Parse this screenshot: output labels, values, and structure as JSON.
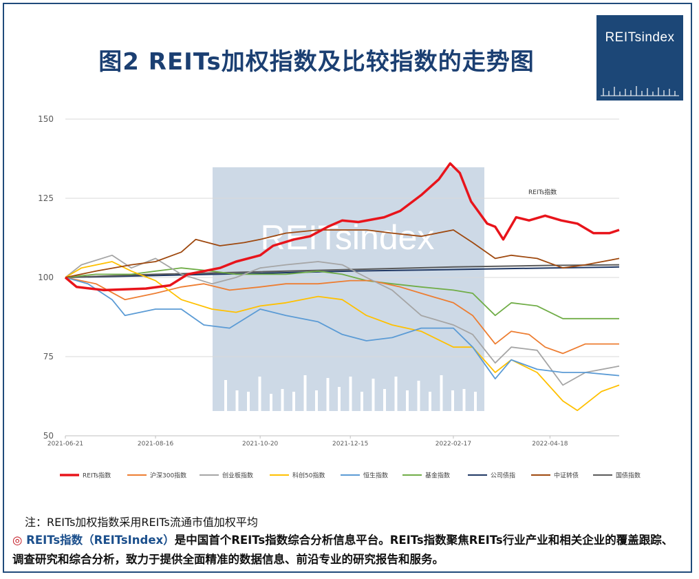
{
  "title": "图2  REITs加权指数及比较指数的走势图",
  "logo": {
    "text": "REITsindex",
    "bg_color": "#1c4777"
  },
  "watermark": "REITsindex",
  "note": "注：REITs加权指数采用REITs流通市值加权平均",
  "description": {
    "bullet": "◎",
    "brand": "REITs指数（REITsIndex）",
    "text": "是中国首个REITs指数综合分析信息平台。REITs指数聚焦REITs行业产业和相关企业的覆盖跟踪、调查研究和综合分析，致力于提供全面精准的数据信息、前沿专业的研究报告和服务。"
  },
  "chart_data": {
    "type": "line",
    "title": "",
    "xlabel": "",
    "ylabel": "",
    "ylim": [
      50,
      150
    ],
    "yticks": [
      50,
      75,
      100,
      125,
      150
    ],
    "x_range": [
      "2021-06-21",
      "2022-05-31"
    ],
    "x_tick_labels": [
      "2021-06-21",
      "2021-08-16",
      "2021-10-20",
      "2021-12-15",
      "2022-02-17",
      "2022-04-18"
    ],
    "grid": "horizontal",
    "legend_position": "bottom",
    "annotation": "REITs指数",
    "series": [
      {
        "name": "REITs指数",
        "color": "#e8141b",
        "points": [
          [
            "2021-06-21",
            100
          ],
          [
            "2021-06-28",
            97
          ],
          [
            "2021-07-15",
            96
          ],
          [
            "2021-08-10",
            96.5
          ],
          [
            "2021-08-25",
            97.5
          ],
          [
            "2021-09-05",
            101
          ],
          [
            "2021-09-15",
            102
          ],
          [
            "2021-09-25",
            103
          ],
          [
            "2021-10-05",
            105
          ],
          [
            "2021-10-20",
            107
          ],
          [
            "2021-10-28",
            110
          ],
          [
            "2021-11-10",
            112
          ],
          [
            "2021-11-20",
            113
          ],
          [
            "2021-12-01",
            116
          ],
          [
            "2021-12-10",
            118
          ],
          [
            "2021-12-20",
            117.5
          ],
          [
            "2022-01-05",
            119
          ],
          [
            "2022-01-15",
            121
          ],
          [
            "2022-01-28",
            126
          ],
          [
            "2022-02-08",
            131
          ],
          [
            "2022-02-15",
            136
          ],
          [
            "2022-02-21",
            133
          ],
          [
            "2022-02-28",
            124
          ],
          [
            "2022-03-10",
            117
          ],
          [
            "2022-03-15",
            116
          ],
          [
            "2022-03-20",
            112
          ],
          [
            "2022-03-28",
            119
          ],
          [
            "2022-04-05",
            118
          ],
          [
            "2022-04-15",
            119.5
          ],
          [
            "2022-04-25",
            118
          ],
          [
            "2022-05-05",
            117
          ],
          [
            "2022-05-15",
            114
          ],
          [
            "2022-05-25",
            114
          ],
          [
            "2022-05-31",
            115
          ]
        ]
      },
      {
        "name": "沪深300指数",
        "color": "#ed7d31",
        "points": [
          [
            "2021-06-21",
            100
          ],
          [
            "2021-07-10",
            98
          ],
          [
            "2021-07-28",
            93
          ],
          [
            "2021-08-16",
            95
          ],
          [
            "2021-09-01",
            97
          ],
          [
            "2021-09-15",
            98
          ],
          [
            "2021-10-01",
            96
          ],
          [
            "2021-10-20",
            97
          ],
          [
            "2021-11-05",
            98
          ],
          [
            "2021-11-25",
            98
          ],
          [
            "2021-12-15",
            99
          ],
          [
            "2021-12-28",
            99
          ],
          [
            "2022-01-15",
            97
          ],
          [
            "2022-01-28",
            95
          ],
          [
            "2022-02-17",
            92
          ],
          [
            "2022-03-01",
            88
          ],
          [
            "2022-03-15",
            79
          ],
          [
            "2022-03-25",
            83
          ],
          [
            "2022-04-05",
            82
          ],
          [
            "2022-04-15",
            78
          ],
          [
            "2022-04-26",
            76
          ],
          [
            "2022-05-10",
            79
          ],
          [
            "2022-05-31",
            79
          ]
        ]
      },
      {
        "name": "创业板指数",
        "color": "#a5a5a5",
        "points": [
          [
            "2021-06-21",
            100
          ],
          [
            "2021-07-01",
            104
          ],
          [
            "2021-07-20",
            107
          ],
          [
            "2021-08-01",
            103
          ],
          [
            "2021-08-16",
            106
          ],
          [
            "2021-09-01",
            101
          ],
          [
            "2021-09-20",
            98
          ],
          [
            "2021-10-05",
            100
          ],
          [
            "2021-10-20",
            103
          ],
          [
            "2021-11-05",
            104
          ],
          [
            "2021-11-25",
            105
          ],
          [
            "2021-12-10",
            104
          ],
          [
            "2021-12-25",
            100
          ],
          [
            "2022-01-10",
            96
          ],
          [
            "2022-01-28",
            88
          ],
          [
            "2022-02-17",
            85
          ],
          [
            "2022-03-01",
            82
          ],
          [
            "2022-03-15",
            73
          ],
          [
            "2022-03-25",
            78
          ],
          [
            "2022-04-10",
            77
          ],
          [
            "2022-04-26",
            66
          ],
          [
            "2022-05-10",
            70
          ],
          [
            "2022-05-31",
            72
          ]
        ]
      },
      {
        "name": "科创50指数",
        "color": "#ffc000",
        "points": [
          [
            "2021-06-21",
            100
          ],
          [
            "2021-07-01",
            103
          ],
          [
            "2021-07-20",
            105
          ],
          [
            "2021-08-01",
            102
          ],
          [
            "2021-08-16",
            99
          ],
          [
            "2021-09-01",
            93
          ],
          [
            "2021-09-20",
            90
          ],
          [
            "2021-10-05",
            89
          ],
          [
            "2021-10-20",
            91
          ],
          [
            "2021-11-05",
            92
          ],
          [
            "2021-11-25",
            94
          ],
          [
            "2021-12-10",
            93
          ],
          [
            "2021-12-25",
            88
          ],
          [
            "2022-01-10",
            85
          ],
          [
            "2022-01-28",
            83
          ],
          [
            "2022-02-17",
            78
          ],
          [
            "2022-03-01",
            78
          ],
          [
            "2022-03-15",
            70
          ],
          [
            "2022-03-25",
            74
          ],
          [
            "2022-04-10",
            70
          ],
          [
            "2022-04-26",
            61
          ],
          [
            "2022-05-05",
            58
          ],
          [
            "2022-05-20",
            64
          ],
          [
            "2022-05-31",
            66
          ]
        ]
      },
      {
        "name": "恒生指数",
        "color": "#5b9bd5",
        "points": [
          [
            "2021-06-21",
            100
          ],
          [
            "2021-07-05",
            98
          ],
          [
            "2021-07-20",
            93
          ],
          [
            "2021-07-28",
            88
          ],
          [
            "2021-08-16",
            90
          ],
          [
            "2021-09-01",
            90
          ],
          [
            "2021-09-15",
            85
          ],
          [
            "2021-10-01",
            84
          ],
          [
            "2021-10-20",
            90
          ],
          [
            "2021-11-05",
            88
          ],
          [
            "2021-11-25",
            86
          ],
          [
            "2021-12-10",
            82
          ],
          [
            "2021-12-25",
            80
          ],
          [
            "2022-01-10",
            81
          ],
          [
            "2022-01-28",
            84
          ],
          [
            "2022-02-17",
            84
          ],
          [
            "2022-03-01",
            78
          ],
          [
            "2022-03-15",
            68
          ],
          [
            "2022-03-25",
            74
          ],
          [
            "2022-04-10",
            71
          ],
          [
            "2022-04-26",
            70
          ],
          [
            "2022-05-10",
            70
          ],
          [
            "2022-05-31",
            69
          ]
        ]
      },
      {
        "name": "基金指数",
        "color": "#70ad47",
        "points": [
          [
            "2021-06-21",
            100
          ],
          [
            "2021-07-10",
            101
          ],
          [
            "2021-08-01",
            101
          ],
          [
            "2021-08-16",
            102
          ],
          [
            "2021-09-01",
            103
          ],
          [
            "2021-09-20",
            102
          ],
          [
            "2021-10-05",
            101
          ],
          [
            "2021-10-20",
            101
          ],
          [
            "2021-11-05",
            101
          ],
          [
            "2021-11-25",
            102
          ],
          [
            "2021-12-10",
            101
          ],
          [
            "2021-12-25",
            99
          ],
          [
            "2022-01-10",
            98
          ],
          [
            "2022-01-28",
            97
          ],
          [
            "2022-02-17",
            96
          ],
          [
            "2022-03-01",
            95
          ],
          [
            "2022-03-15",
            88
          ],
          [
            "2022-03-25",
            92
          ],
          [
            "2022-04-10",
            91
          ],
          [
            "2022-04-26",
            87
          ],
          [
            "2022-05-10",
            87
          ],
          [
            "2022-05-31",
            87
          ]
        ]
      },
      {
        "name": "公司债指",
        "color": "#203864",
        "points": [
          [
            "2021-06-21",
            100
          ],
          [
            "2021-08-16",
            100.6
          ],
          [
            "2021-10-20",
            101.3
          ],
          [
            "2021-12-15",
            102
          ],
          [
            "2022-02-17",
            102.5
          ],
          [
            "2022-04-18",
            103
          ],
          [
            "2022-05-31",
            103.3
          ]
        ]
      },
      {
        "name": "中证转债",
        "color": "#9e480e",
        "points": [
          [
            "2021-06-21",
            100
          ],
          [
            "2021-07-10",
            102
          ],
          [
            "2021-08-01",
            104
          ],
          [
            "2021-08-16",
            105
          ],
          [
            "2021-09-01",
            108
          ],
          [
            "2021-09-10",
            112
          ],
          [
            "2021-09-25",
            110
          ],
          [
            "2021-10-10",
            111
          ],
          [
            "2021-10-20",
            112
          ],
          [
            "2021-11-05",
            114
          ],
          [
            "2021-11-25",
            115
          ],
          [
            "2021-12-10",
            115
          ],
          [
            "2021-12-25",
            115
          ],
          [
            "2022-01-10",
            114
          ],
          [
            "2022-01-28",
            113
          ],
          [
            "2022-02-17",
            115
          ],
          [
            "2022-03-01",
            111
          ],
          [
            "2022-03-15",
            106
          ],
          [
            "2022-03-25",
            107
          ],
          [
            "2022-04-10",
            106
          ],
          [
            "2022-04-26",
            103
          ],
          [
            "2022-05-10",
            104
          ],
          [
            "2022-05-31",
            106
          ]
        ]
      },
      {
        "name": "国债指数",
        "color": "#595959",
        "points": [
          [
            "2021-06-21",
            100
          ],
          [
            "2021-08-16",
            101
          ],
          [
            "2021-10-20",
            101.8
          ],
          [
            "2021-12-15",
            102.5
          ],
          [
            "2022-02-17",
            103.3
          ],
          [
            "2022-04-18",
            103.8
          ],
          [
            "2022-05-31",
            104
          ]
        ]
      }
    ]
  }
}
